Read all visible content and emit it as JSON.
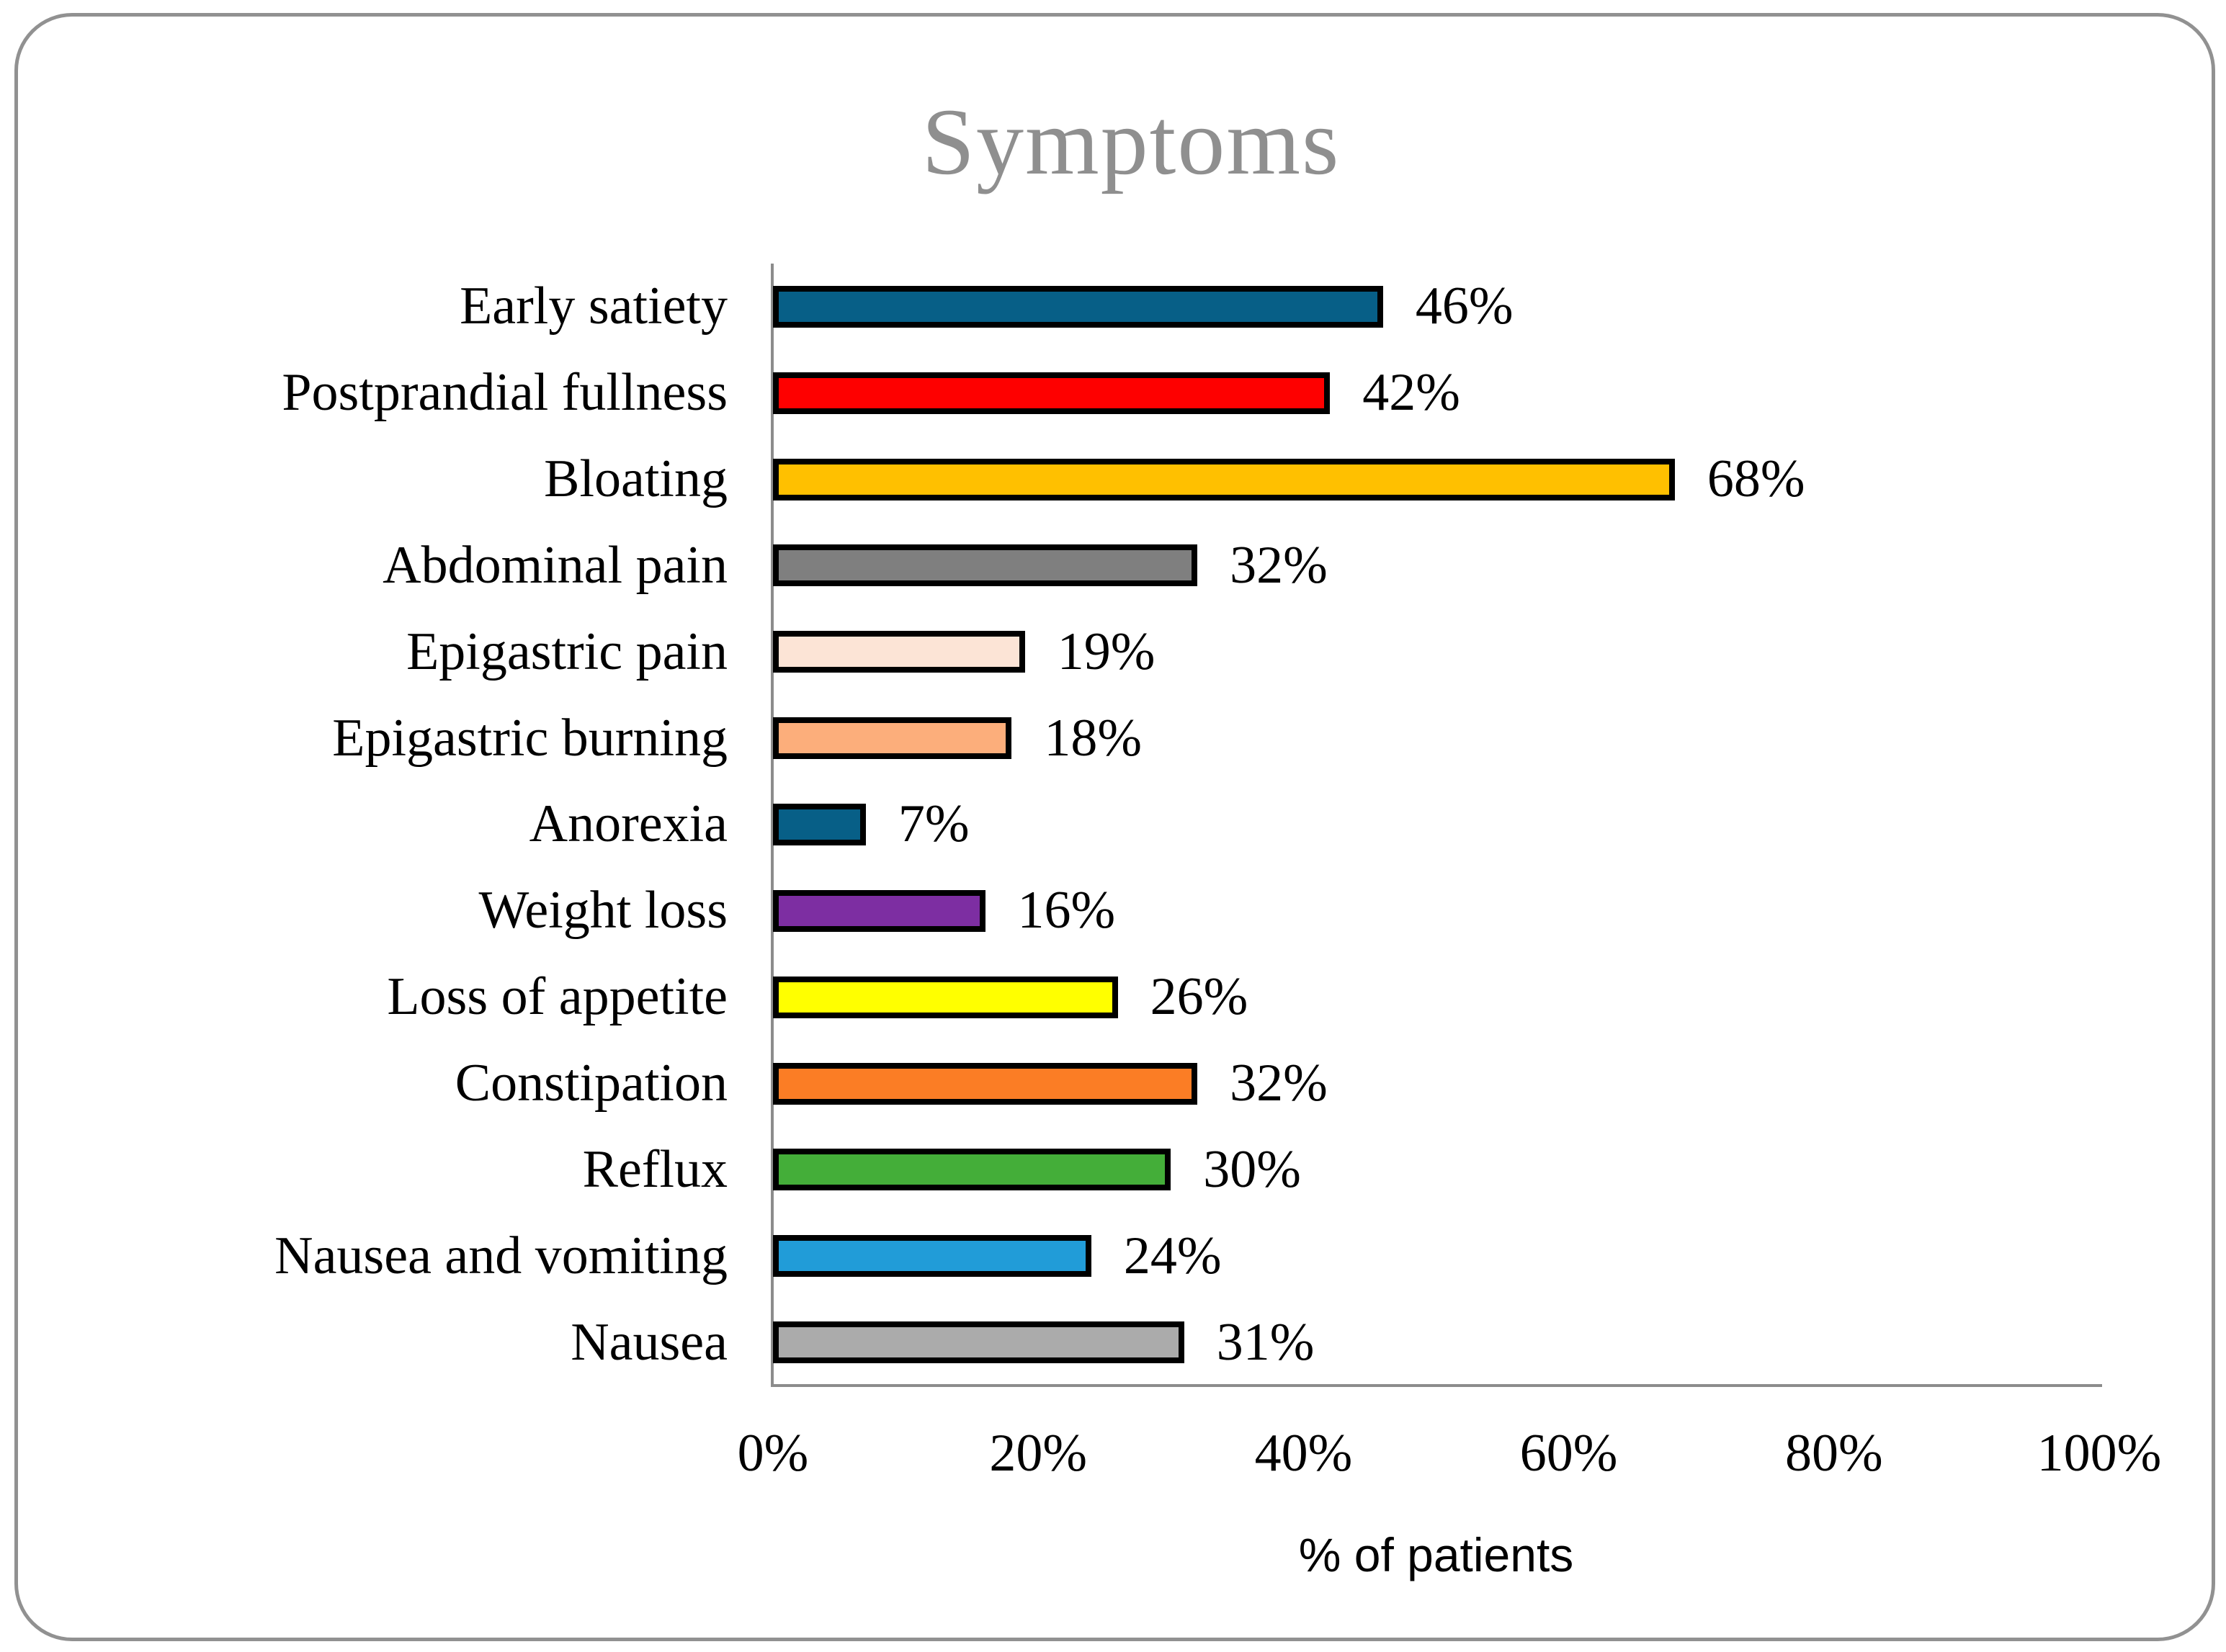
{
  "title": "Symptoms",
  "styles": {
    "title_color": "#8F8F8F",
    "axis_color": "#8C8C8C",
    "frame_border_color": "#919191",
    "bar_border_color": "#000000",
    "text_color": "#000000"
  },
  "chart_data": {
    "type": "bar",
    "orientation": "horizontal",
    "title": "Symptoms",
    "categories": [
      "Early satiety",
      "Postprandial fullness",
      "Bloating",
      "Abdominal pain",
      "Epigastric pain",
      "Epigastric burning",
      "Anorexia",
      "Weight loss",
      "Loss of appetite",
      "Constipation",
      "Reflux",
      "Nausea and vomiting",
      "Nausea"
    ],
    "values": [
      46,
      42,
      68,
      32,
      19,
      18,
      7,
      16,
      26,
      32,
      30,
      24,
      31
    ],
    "data_labels": [
      "46%",
      "42%",
      "68%",
      "32%",
      "19%",
      "18%",
      "7%",
      "16%",
      "26%",
      "32%",
      "30%",
      "24%",
      "31%"
    ],
    "colors": [
      "#075F87",
      "#FE0000",
      "#FFC000",
      "#7F7F7F",
      "#FCE4D6",
      "#FCAE7B",
      "#075F87",
      "#7D2EA2",
      "#FFFF00",
      "#FB7D25",
      "#44AE39",
      "#219CD8",
      "#ABABAB"
    ],
    "xlabel": "% of patients",
    "x_ticks": [
      "0%",
      "20%",
      "40%",
      "60%",
      "80%",
      "100%"
    ],
    "xlim": [
      0,
      100
    ],
    "legend": "none",
    "grid": "off"
  }
}
